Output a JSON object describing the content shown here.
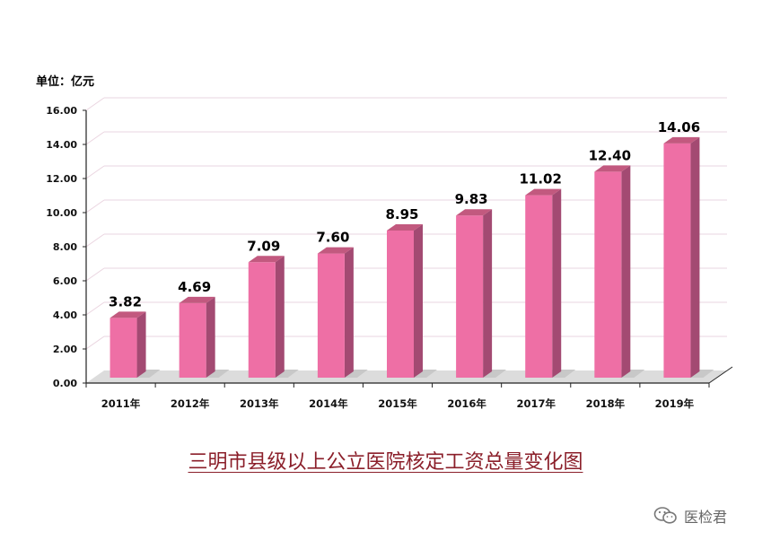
{
  "chart_data": {
    "type": "bar",
    "title": "三明市县级以上公立医院核定工资总量变化图",
    "unit_label": "单位：亿元",
    "xlabel": "",
    "ylabel": "",
    "ylim": [
      0,
      16
    ],
    "y_ticks": [
      "0.00",
      "2.00",
      "4.00",
      "6.00",
      "8.00",
      "10.00",
      "12.00",
      "14.00",
      "16.00"
    ],
    "categories": [
      "2011年",
      "2012年",
      "2013年",
      "2014年",
      "2015年",
      "2016年",
      "2017年",
      "2018年",
      "2019年"
    ],
    "values": [
      3.82,
      4.69,
      7.09,
      7.6,
      8.95,
      9.83,
      11.02,
      12.4,
      14.06
    ],
    "value_labels": [
      "3.82",
      "4.69",
      "7.09",
      "7.60",
      "8.95",
      "9.83",
      "11.02",
      "12.40",
      "14.06"
    ],
    "grid": true,
    "legend": "none",
    "colors": {
      "bar_front": "#ee6fa5",
      "bar_side": "#a34a72",
      "bar_top": "#c2597f",
      "grid": "#ead5e0",
      "floor": "#dcdcdc"
    }
  },
  "watermark": {
    "icon": "wechat-icon",
    "text": "医检君"
  }
}
